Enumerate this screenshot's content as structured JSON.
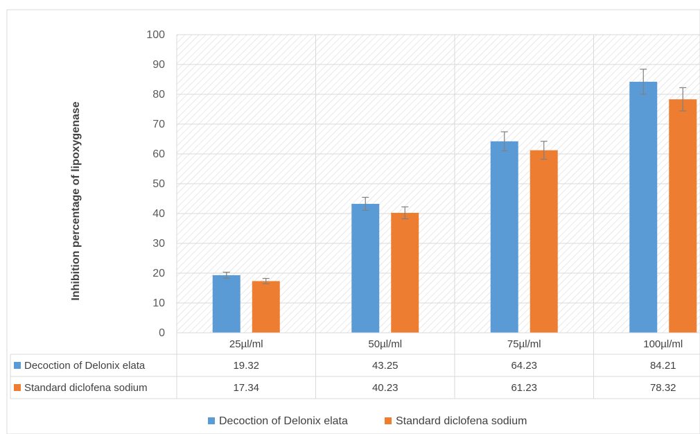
{
  "chart_data": {
    "type": "bar",
    "ylabel": "Inhibition percentage of lipoxygenase",
    "ylim": [
      0,
      100
    ],
    "yticks": [
      0,
      10,
      20,
      30,
      40,
      50,
      60,
      70,
      80,
      90,
      100
    ],
    "categories": [
      "25µl/ml",
      "50µl/ml",
      "75µl/ml",
      "100µl/ml"
    ],
    "series": [
      {
        "name": "Decoction of Delonix elata",
        "color": "#5B9BD5",
        "values": [
          19.32,
          43.25,
          64.23,
          84.21
        ],
        "value_labels": [
          "19.32",
          "43.25",
          "64.23",
          "84.21"
        ],
        "errors": [
          1.0,
          2.2,
          3.2,
          4.2
        ]
      },
      {
        "name": "Standard diclofena sodium",
        "color": "#ED7D31",
        "values": [
          17.34,
          40.23,
          61.23,
          78.32
        ],
        "value_labels": [
          "17.34",
          "40.23",
          "61.23",
          "78.32"
        ],
        "errors": [
          0.9,
          2.0,
          3.0,
          3.9
        ]
      }
    ],
    "grid": true,
    "data_table": true,
    "legend_position": "bottom"
  }
}
